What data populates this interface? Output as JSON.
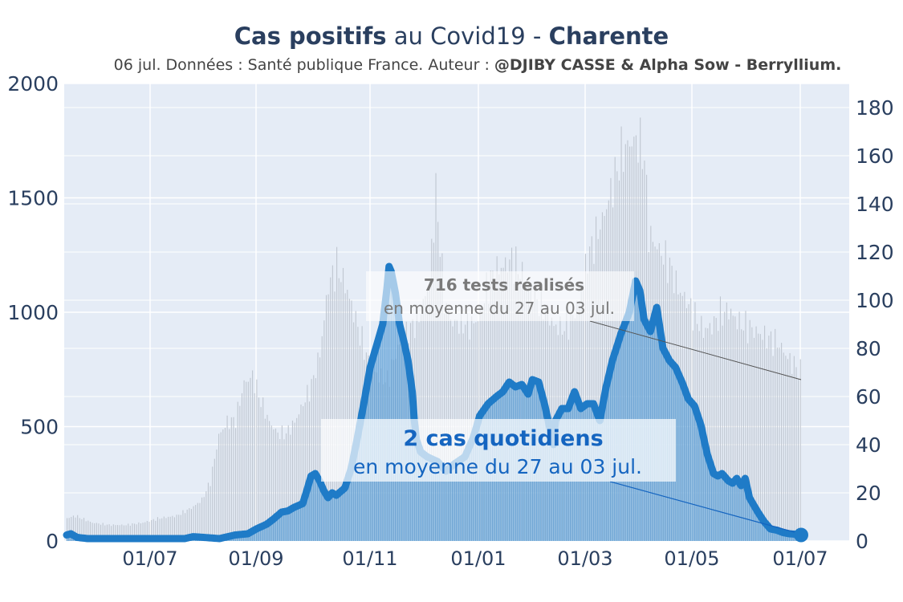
{
  "header": {
    "title_bold_1": "Cas positifs",
    "title_mid": " au Covid19 - ",
    "title_bold_2": "Charente",
    "subtitle_plain": "06 jul. Données : Santé publique France. Auteur : ",
    "subtitle_bold": "@DJIBY CASSE & Alpha Sow - Berryllium."
  },
  "chart_data": {
    "type": "bar+line",
    "title": "Cas positifs au Covid19 - Charente",
    "x_ticks": [
      "01/07",
      "01/09",
      "01/11",
      "01/01",
      "01/03",
      "01/05",
      "01/07"
    ],
    "y_left": {
      "ticks": [
        "0",
        "500",
        "1000",
        "1500",
        "2000"
      ],
      "range": [
        0,
        2000
      ]
    },
    "y_right": {
      "ticks": [
        "0",
        "20",
        "40",
        "60",
        "80",
        "100",
        "120",
        "140",
        "160",
        "180"
      ],
      "range": [
        0,
        190
      ]
    },
    "grid": true,
    "series": [
      {
        "kind": "bars",
        "axis": "left",
        "color": "#bfc6d0",
        "knots": [
          [
            0,
            100
          ],
          [
            8,
            110
          ],
          [
            16,
            95
          ],
          [
            24,
            80
          ],
          [
            40,
            70
          ],
          [
            56,
            70
          ],
          [
            72,
            80
          ],
          [
            88,
            100
          ],
          [
            104,
            110
          ],
          [
            112,
            130
          ],
          [
            120,
            150
          ],
          [
            128,
            180
          ],
          [
            136,
            260
          ],
          [
            144,
            460
          ],
          [
            152,
            520
          ],
          [
            160,
            530
          ],
          [
            168,
            690
          ],
          [
            176,
            720
          ],
          [
            184,
            610
          ],
          [
            192,
            520
          ],
          [
            200,
            470
          ],
          [
            208,
            470
          ],
          [
            216,
            520
          ],
          [
            224,
            600
          ],
          [
            232,
            680
          ],
          [
            240,
            820
          ],
          [
            248,
            1120
          ],
          [
            256,
            1200
          ],
          [
            264,
            1120
          ],
          [
            272,
            1000
          ],
          [
            280,
            870
          ],
          [
            288,
            760
          ],
          [
            296,
            720
          ],
          [
            304,
            700
          ],
          [
            312,
            820
          ],
          [
            320,
            900
          ],
          [
            328,
            940
          ],
          [
            336,
            1000
          ],
          [
            344,
            1150
          ],
          [
            350,
            1520
          ],
          [
            354,
            1300
          ],
          [
            358,
            1050
          ],
          [
            366,
            950
          ],
          [
            374,
            960
          ],
          [
            382,
            940
          ],
          [
            390,
            970
          ],
          [
            398,
            1100
          ],
          [
            406,
            1180
          ],
          [
            414,
            1200
          ],
          [
            422,
            1230
          ],
          [
            430,
            1180
          ],
          [
            438,
            1110
          ],
          [
            446,
            1050
          ],
          [
            454,
            1020
          ],
          [
            462,
            940
          ],
          [
            470,
            930
          ],
          [
            478,
            960
          ],
          [
            486,
            1050
          ],
          [
            494,
            1240
          ],
          [
            502,
            1330
          ],
          [
            510,
            1430
          ],
          [
            518,
            1560
          ],
          [
            526,
            1690
          ],
          [
            534,
            1740
          ],
          [
            542,
            1750
          ],
          [
            548,
            1680
          ],
          [
            552,
            1350
          ],
          [
            556,
            1310
          ],
          [
            564,
            1260
          ],
          [
            572,
            1200
          ],
          [
            580,
            1100
          ],
          [
            588,
            1050
          ],
          [
            596,
            980
          ],
          [
            604,
            920
          ],
          [
            612,
            940
          ],
          [
            620,
            990
          ],
          [
            628,
            1010
          ],
          [
            636,
            960
          ],
          [
            644,
            940
          ],
          [
            652,
            920
          ],
          [
            660,
            900
          ],
          [
            668,
            880
          ],
          [
            676,
            860
          ],
          [
            684,
            800
          ],
          [
            692,
            760
          ],
          [
            700,
            720
          ],
          [
            708,
            710
          ],
          [
            716,
            660
          ],
          [
            720,
            700
          ],
          [
            724,
            740
          ],
          [
            728,
            760
          ]
        ]
      },
      {
        "kind": "area",
        "axis": "right",
        "color": "#1f7bc7",
        "knots": [
          [
            0,
            2.5
          ],
          [
            4,
            3
          ],
          [
            10,
            1.5
          ],
          [
            20,
            1
          ],
          [
            60,
            1
          ],
          [
            90,
            1
          ],
          [
            112,
            1
          ],
          [
            120,
            1.8
          ],
          [
            130,
            1.5
          ],
          [
            145,
            1
          ],
          [
            160,
            2.5
          ],
          [
            172,
            3
          ],
          [
            180,
            5
          ],
          [
            190,
            7
          ],
          [
            196,
            9
          ],
          [
            204,
            12
          ],
          [
            210,
            12.5
          ],
          [
            216,
            14
          ],
          [
            224,
            15.5
          ],
          [
            228,
            21
          ],
          [
            232,
            27
          ],
          [
            236,
            28
          ],
          [
            240,
            25
          ],
          [
            244,
            21
          ],
          [
            248,
            18
          ],
          [
            252,
            20
          ],
          [
            256,
            19
          ],
          [
            264,
            22
          ],
          [
            270,
            30
          ],
          [
            276,
            43
          ],
          [
            282,
            57
          ],
          [
            288,
            72
          ],
          [
            294,
            81
          ],
          [
            300,
            90
          ],
          [
            304,
            105
          ],
          [
            306,
            114
          ],
          [
            308,
            112
          ],
          [
            312,
            103
          ],
          [
            316,
            90
          ],
          [
            320,
            83
          ],
          [
            324,
            75
          ],
          [
            328,
            62
          ],
          [
            330,
            50
          ],
          [
            332,
            42
          ],
          [
            336,
            37
          ],
          [
            342,
            35
          ],
          [
            352,
            33
          ],
          [
            360,
            29
          ],
          [
            368,
            32
          ],
          [
            378,
            35
          ],
          [
            386,
            43
          ],
          [
            392,
            52
          ],
          [
            400,
            57
          ],
          [
            408,
            60
          ],
          [
            414,
            62
          ],
          [
            420,
            66
          ],
          [
            426,
            64
          ],
          [
            432,
            65
          ],
          [
            438,
            61
          ],
          [
            442,
            67
          ],
          [
            448,
            66
          ],
          [
            454,
            56
          ],
          [
            460,
            44
          ],
          [
            462,
            40
          ],
          [
            464,
            50
          ],
          [
            470,
            55
          ],
          [
            476,
            55
          ],
          [
            482,
            62
          ],
          [
            488,
            55
          ],
          [
            494,
            57
          ],
          [
            500,
            57
          ],
          [
            506,
            50
          ],
          [
            512,
            64
          ],
          [
            518,
            75
          ],
          [
            526,
            86
          ],
          [
            534,
            95
          ],
          [
            540,
            108
          ],
          [
            544,
            104
          ],
          [
            548,
            92
          ],
          [
            554,
            87
          ],
          [
            560,
            97
          ],
          [
            566,
            80
          ],
          [
            572,
            75
          ],
          [
            578,
            72
          ],
          [
            584,
            66
          ],
          [
            590,
            59
          ],
          [
            596,
            56
          ],
          [
            602,
            48
          ],
          [
            608,
            36
          ],
          [
            614,
            28
          ],
          [
            618,
            27
          ],
          [
            622,
            28
          ],
          [
            628,
            25
          ],
          [
            632,
            24
          ],
          [
            636,
            26
          ],
          [
            640,
            23
          ],
          [
            644,
            26
          ],
          [
            648,
            18
          ],
          [
            656,
            12
          ],
          [
            662,
            8
          ],
          [
            668,
            5
          ],
          [
            674,
            4.5
          ],
          [
            680,
            3.5
          ],
          [
            686,
            3
          ],
          [
            692,
            2.8
          ],
          [
            697,
            2.5
          ]
        ],
        "end_marker_value": 2.5
      }
    ],
    "annotations": [
      {
        "title": "716 tests réalisés",
        "text": "en moyenne du 27 au 03 jul.",
        "color": "#7a7a7a"
      },
      {
        "title": "2 cas quotidiens",
        "text": "en moyenne du 27 au 03 jul.",
        "color": "#1565c0"
      }
    ]
  }
}
